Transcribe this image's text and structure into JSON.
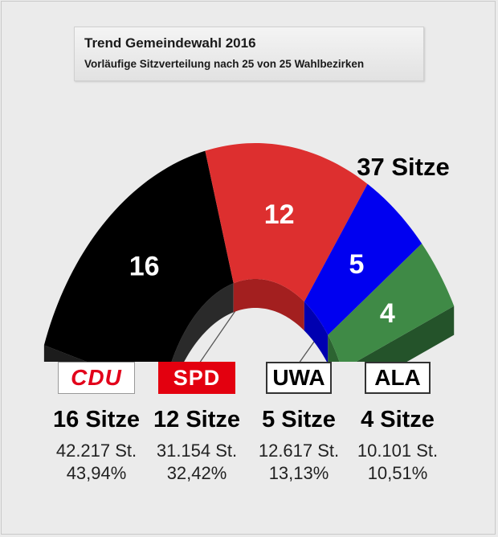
{
  "header": {
    "title": "Trend Gemeindewahl 2016",
    "subtitle": "Vorläufige Sitzverteilung nach 25 von 25 Wahlbezirken"
  },
  "total_label": "37 Sitze",
  "parties": [
    {
      "logo": "CDU",
      "seats_label": "16 Sitze",
      "votes": "42.217 St.",
      "percent": "43,94%"
    },
    {
      "logo": "SPD",
      "seats_label": "12 Sitze",
      "votes": "31.154 St.",
      "percent": "32,42%"
    },
    {
      "logo": "UWA",
      "seats_label": "5 Sitze",
      "votes": "12.617 St.",
      "percent": "13,13%"
    },
    {
      "logo": "ALA",
      "seats_label": "4 Sitze",
      "votes": "10.101 St.",
      "percent": "10,51%"
    }
  ],
  "chart_data": {
    "type": "pie",
    "subtype": "semicircle-seat-distribution",
    "total_seats": 37,
    "categories": [
      "CDU",
      "SPD",
      "UWA",
      "ALA"
    ],
    "values": [
      16,
      12,
      5,
      4
    ],
    "value_labels": [
      "16",
      "12",
      "5",
      "4"
    ],
    "votes": [
      42217,
      31154,
      12617,
      10101
    ],
    "percent": [
      43.94,
      32.42,
      13.13,
      10.51
    ],
    "colors": [
      "#000000",
      "#dd2f2f",
      "#0000f0",
      "#3f8a46"
    ],
    "side_colors": [
      "#2a2a2a",
      "#a31f1f",
      "#0000b0",
      "#2c6431"
    ]
  }
}
